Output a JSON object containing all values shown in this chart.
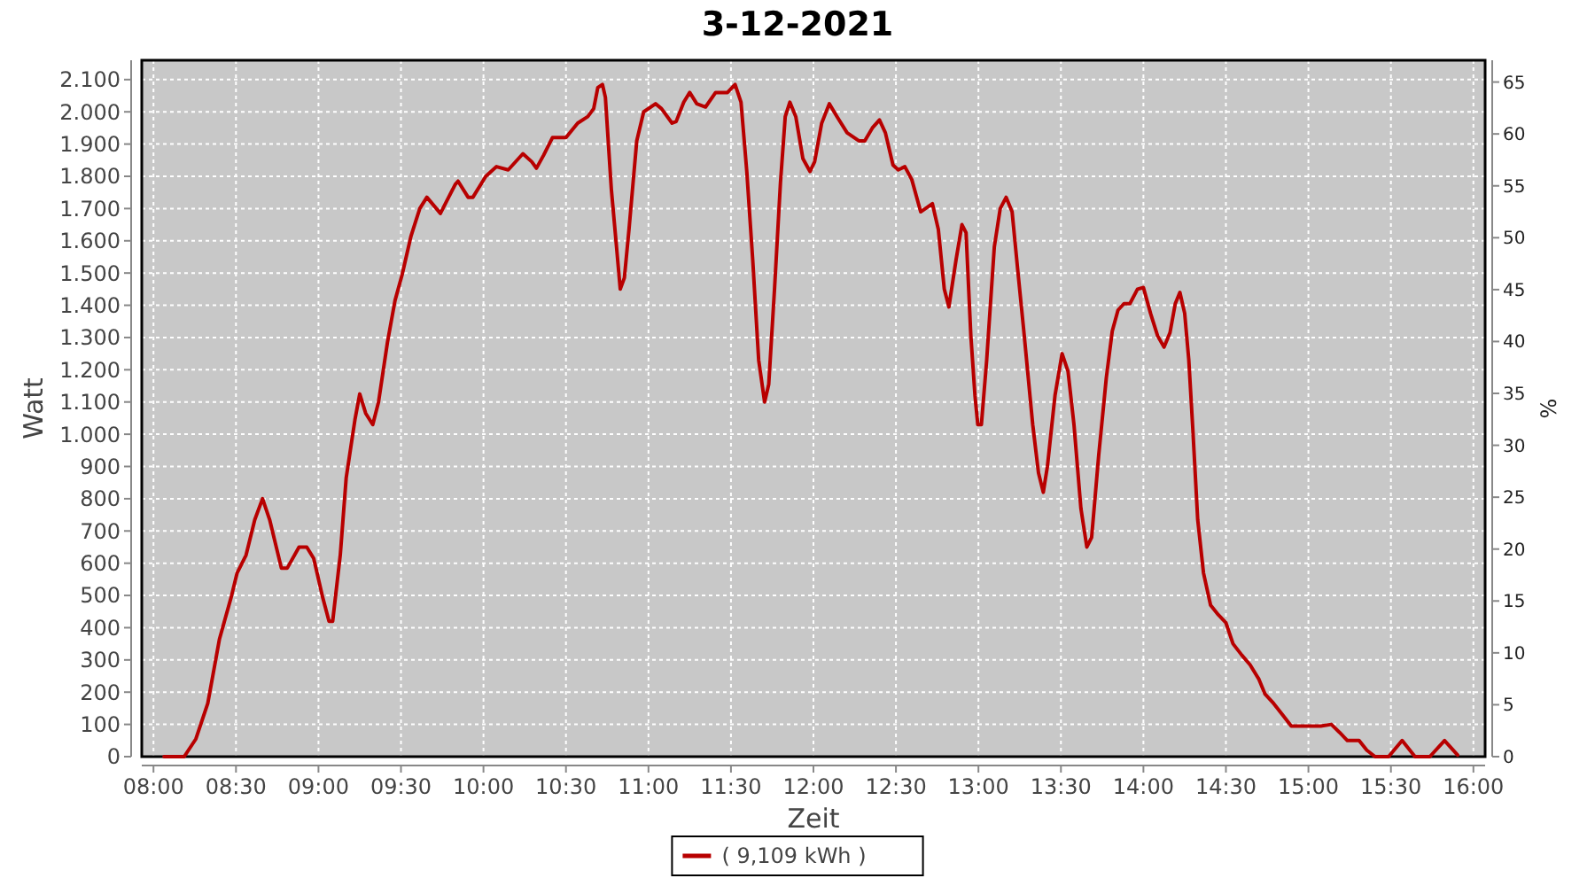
{
  "chart_data": {
    "type": "line",
    "title": "3-12-2021",
    "xlabel": "Zeit",
    "ylabel": "Watt",
    "y2label": "%",
    "xlim": [
      7.929,
      16.071
    ],
    "ylim": [
      0,
      2160
    ],
    "y2lim": [
      0,
      67.1
    ],
    "xticks": [
      {
        "value": 8,
        "label": "08:00"
      },
      {
        "value": 8.5,
        "label": "08:30"
      },
      {
        "value": 9,
        "label": "09:00"
      },
      {
        "value": 9.5,
        "label": "09:30"
      },
      {
        "value": 10,
        "label": "10:00"
      },
      {
        "value": 10.5,
        "label": "10:30"
      },
      {
        "value": 11,
        "label": "11:00"
      },
      {
        "value": 11.5,
        "label": "11:30"
      },
      {
        "value": 12,
        "label": "12:00"
      },
      {
        "value": 12.5,
        "label": "12:30"
      },
      {
        "value": 13,
        "label": "13:00"
      },
      {
        "value": 13.5,
        "label": "13:30"
      },
      {
        "value": 14,
        "label": "14:00"
      },
      {
        "value": 14.5,
        "label": "14:30"
      },
      {
        "value": 15,
        "label": "15:00"
      },
      {
        "value": 15.5,
        "label": "15:30"
      },
      {
        "value": 16,
        "label": "16:00"
      }
    ],
    "yticks": [
      0,
      100,
      200,
      300,
      400,
      500,
      600,
      700,
      800,
      900,
      {
        "value": 1000,
        "label": "1.000"
      },
      {
        "value": 1100,
        "label": "1.100"
      },
      {
        "value": 1200,
        "label": "1.200"
      },
      {
        "value": 1300,
        "label": "1.300"
      },
      {
        "value": 1400,
        "label": "1.400"
      },
      {
        "value": 1500,
        "label": "1.500"
      },
      {
        "value": 1600,
        "label": "1.600"
      },
      {
        "value": 1700,
        "label": "1.700"
      },
      {
        "value": 1800,
        "label": "1.800"
      },
      {
        "value": 1900,
        "label": "1.900"
      },
      {
        "value": 2000,
        "label": "2.000"
      },
      {
        "value": 2100,
        "label": "2.100"
      }
    ],
    "y2ticks": [
      0,
      5,
      10,
      15,
      20,
      25,
      30,
      35,
      40,
      45,
      50,
      55,
      60,
      65
    ],
    "grid": true,
    "legend": "bottom",
    "marker": "none",
    "line_style": "solid",
    "series": [
      {
        "name": "( 9,109 kWh )",
        "color": "#b80000",
        "x": [
          8.064,
          8.186,
          8.257,
          8.329,
          8.4,
          8.471,
          8.507,
          8.561,
          8.614,
          8.661,
          8.704,
          8.775,
          8.811,
          8.882,
          8.929,
          8.971,
          9.025,
          9.064,
          9.086,
          9.132,
          9.168,
          9.221,
          9.25,
          9.286,
          9.329,
          9.364,
          9.418,
          9.464,
          9.507,
          9.561,
          9.614,
          9.657,
          9.739,
          9.829,
          9.846,
          9.907,
          9.936,
          10.014,
          10.079,
          10.15,
          10.239,
          10.293,
          10.321,
          10.364,
          10.418,
          10.5,
          10.571,
          10.632,
          10.668,
          10.693,
          10.721,
          10.739,
          10.775,
          10.804,
          10.829,
          10.854,
          10.882,
          10.929,
          10.971,
          11.043,
          11.079,
          11.143,
          11.168,
          11.214,
          11.25,
          11.293,
          11.346,
          11.407,
          11.479,
          11.525,
          11.561,
          11.596,
          11.632,
          11.668,
          11.704,
          11.729,
          11.764,
          11.8,
          11.829,
          11.857,
          11.893,
          11.936,
          11.979,
          12.007,
          12.05,
          12.096,
          12.143,
          12.204,
          12.275,
          12.311,
          12.357,
          12.4,
          12.436,
          12.482,
          12.514,
          12.554,
          12.596,
          12.65,
          12.721,
          12.757,
          12.793,
          12.821,
          12.864,
          12.9,
          12.925,
          12.954,
          12.979,
          12.996,
          13.018,
          13.05,
          13.096,
          13.132,
          13.168,
          13.204,
          13.239,
          13.275,
          13.329,
          13.364,
          13.393,
          13.418,
          13.464,
          13.507,
          13.543,
          13.579,
          13.621,
          13.657,
          13.686,
          13.729,
          13.775,
          13.811,
          13.846,
          13.882,
          13.918,
          13.964,
          14.0,
          14.043,
          14.086,
          14.125,
          14.161,
          14.193,
          14.221,
          14.25,
          14.275,
          14.3,
          14.329,
          14.364,
          14.407,
          14.454,
          14.5,
          14.543,
          14.596,
          14.646,
          14.7,
          14.736,
          14.789,
          14.843,
          14.896,
          14.95,
          15.075,
          15.139,
          15.189,
          15.236,
          15.307,
          15.354,
          15.404,
          15.486,
          15.568,
          15.646,
          15.736,
          15.825,
          15.904
        ],
        "values": [
          0,
          0,
          55,
          165,
          365,
          495,
          570,
          625,
          735,
          800,
          735,
          585,
          585,
          650,
          650,
          615,
          495,
          420,
          420,
          625,
          865,
          1045,
          1125,
          1065,
          1030,
          1100,
          1285,
          1415,
          1495,
          1615,
          1700,
          1735,
          1685,
          1775,
          1785,
          1735,
          1735,
          1800,
          1830,
          1820,
          1870,
          1845,
          1825,
          1865,
          1920,
          1920,
          1965,
          1985,
          2010,
          2075,
          2085,
          2045,
          1760,
          1595,
          1450,
          1485,
          1635,
          1910,
          2000,
          2025,
          2010,
          1965,
          1970,
          2030,
          2060,
          2025,
          2015,
          2060,
          2060,
          2085,
          2030,
          1815,
          1540,
          1230,
          1100,
          1155,
          1450,
          1780,
          1985,
          2030,
          1985,
          1855,
          1815,
          1845,
          1965,
          2025,
          1985,
          1935,
          1910,
          1910,
          1950,
          1975,
          1935,
          1835,
          1820,
          1830,
          1790,
          1690,
          1715,
          1635,
          1450,
          1395,
          1540,
          1650,
          1625,
          1305,
          1120,
          1030,
          1030,
          1230,
          1580,
          1700,
          1735,
          1690,
          1505,
          1320,
          1030,
          880,
          820,
          900,
          1120,
          1250,
          1195,
          1030,
          770,
          650,
          680,
          935,
          1175,
          1320,
          1385,
          1405,
          1405,
          1450,
          1455,
          1375,
          1305,
          1270,
          1315,
          1405,
          1440,
          1375,
          1230,
          1010,
          735,
          570,
          470,
          440,
          415,
          350,
          315,
          285,
          240,
          195,
          165,
          130,
          95,
          95,
          95,
          100,
          75,
          50,
          50,
          20,
          0,
          0,
          50,
          0,
          0,
          50,
          5
        ]
      }
    ]
  }
}
